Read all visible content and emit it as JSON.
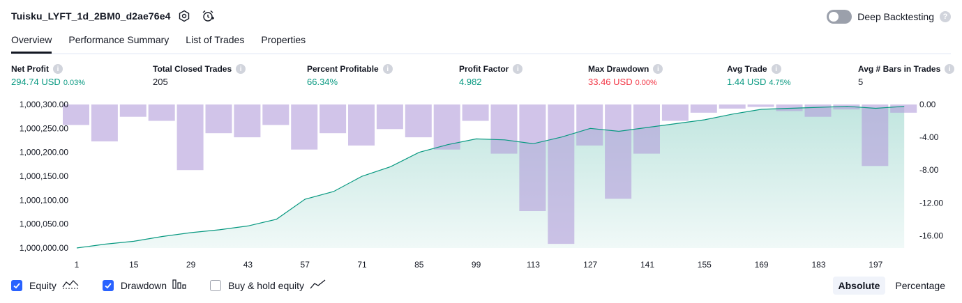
{
  "header": {
    "strategy_name": "Tuisku_LYFT_1d_2BM0_d2ae76e4",
    "deep_backtesting_label": "Deep Backtesting",
    "deep_backtesting_on": false
  },
  "tabs": [
    "Overview",
    "Performance Summary",
    "List of Trades",
    "Properties"
  ],
  "metrics": [
    {
      "label": "Net Profit",
      "value": "294.74 USD",
      "pct": "0.03%",
      "color": "#089981"
    },
    {
      "label": "Total Closed Trades",
      "value": "205",
      "pct": "",
      "color": "#131722"
    },
    {
      "label": "Percent Profitable",
      "value": "66.34%",
      "pct": "",
      "color": "#089981"
    },
    {
      "label": "Profit Factor",
      "value": "4.982",
      "pct": "",
      "color": "#089981"
    },
    {
      "label": "Max Drawdown",
      "value": "33.46 USD",
      "pct": "0.00%",
      "color": "#f23645"
    },
    {
      "label": "Avg Trade",
      "value": "1.44 USD",
      "pct": "4.75%",
      "color": "#089981"
    },
    {
      "label": "Avg # Bars in Trades",
      "value": "5",
      "pct": "",
      "color": "#131722"
    }
  ],
  "legend": {
    "equity": "Equity",
    "drawdown": "Drawdown",
    "buy_hold": "Buy & hold equity",
    "equity_checked": true,
    "drawdown_checked": true,
    "buy_hold_checked": false
  },
  "mode": {
    "absolute": "Absolute",
    "percentage": "Percentage",
    "selected": "Absolute"
  },
  "chart_data": {
    "type": "area",
    "series": [
      {
        "name": "Equity",
        "color": "#089981",
        "x": [
          1,
          8,
          15,
          22,
          29,
          36,
          43,
          50,
          57,
          64,
          71,
          78,
          85,
          92,
          99,
          106,
          113,
          120,
          127,
          134,
          141,
          148,
          155,
          162,
          169,
          176,
          183,
          190,
          197,
          204
        ],
        "y": [
          1000000,
          1000008,
          1000014,
          1000024,
          1000032,
          1000038,
          1000046,
          1000060,
          1000102,
          1000118,
          1000150,
          1000170,
          1000200,
          1000216,
          1000228,
          1000226,
          1000218,
          1000232,
          1000250,
          1000244,
          1000252,
          1000260,
          1000268,
          1000280,
          1000290,
          1000292,
          1000294,
          1000296,
          1000292,
          1000296
        ]
      },
      {
        "name": "Drawdown",
        "color": "#b39ddb",
        "x": [
          1,
          8,
          15,
          22,
          29,
          36,
          43,
          50,
          57,
          64,
          71,
          78,
          85,
          92,
          99,
          106,
          113,
          120,
          127,
          134,
          141,
          148,
          155,
          162,
          169,
          176,
          183,
          190,
          197,
          204
        ],
        "y": [
          -2.5,
          -4.5,
          -1.5,
          -2.0,
          -8.0,
          -3.5,
          -4.0,
          -2.5,
          -5.5,
          -3.5,
          -5.0,
          -3.0,
          -4.0,
          -5.5,
          -2.0,
          -6.0,
          -13.0,
          -17.0,
          -5.0,
          -11.5,
          -6.0,
          -2.0,
          -1.0,
          -0.5,
          -0.3,
          -0.8,
          -1.5,
          -0.6,
          -7.5,
          -1.0
        ]
      }
    ],
    "y_left_ticks": [
      "1,000,300.00",
      "1,000,250.00",
      "1,000,200.00",
      "1,000,150.00",
      "1,000,100.00",
      "1,000,050.00",
      "1,000,000.00"
    ],
    "y_left_range": [
      1000000,
      1000300
    ],
    "y_right_ticks": [
      "0.00",
      "-4.00",
      "-8.00",
      "-12.00",
      "-16.00"
    ],
    "y_right_range": [
      -17.5,
      0
    ],
    "x_ticks": [
      "1",
      "15",
      "29",
      "43",
      "57",
      "71",
      "85",
      "99",
      "113",
      "127",
      "141",
      "155",
      "169",
      "183",
      "197"
    ],
    "x_range": [
      1,
      205
    ],
    "grid": false
  }
}
